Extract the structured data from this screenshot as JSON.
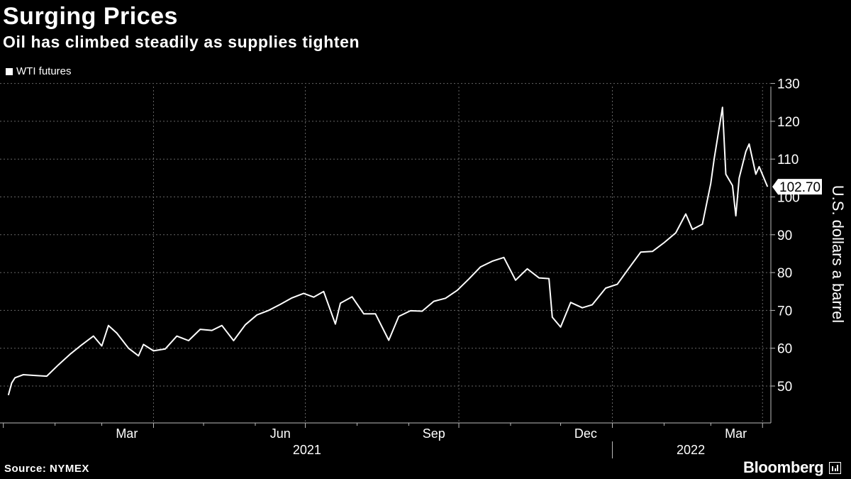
{
  "chart_data": {
    "type": "line",
    "title": "Surging Prices",
    "subtitle": "Oil has climbed steadily as supplies tighten",
    "ylabel": "U.S. dollars a barrel",
    "ylim": [
      41,
      131
    ],
    "yticks": [
      50,
      60,
      70,
      80,
      90,
      100,
      110,
      120,
      130
    ],
    "grid": true,
    "legend_position": "top-left",
    "x_month_labels": [
      "Mar",
      "Jun",
      "Sep",
      "Dec",
      "Mar"
    ],
    "x_year_labels": [
      "2021",
      "2022"
    ],
    "last_value_label": "102.70",
    "series": [
      {
        "name": "WTI futures",
        "color": "#ffffff",
        "x": [
          "2021-01-04",
          "2021-01-06",
          "2021-01-08",
          "2021-01-13",
          "2021-01-20",
          "2021-01-27",
          "2021-02-03",
          "2021-02-10",
          "2021-02-17",
          "2021-02-24",
          "2021-03-01",
          "2021-03-05",
          "2021-03-10",
          "2021-03-17",
          "2021-03-23",
          "2021-03-26",
          "2021-04-01",
          "2021-04-08",
          "2021-04-15",
          "2021-04-22",
          "2021-04-29",
          "2021-05-06",
          "2021-05-12",
          "2021-05-19",
          "2021-05-26",
          "2021-06-02",
          "2021-06-09",
          "2021-06-16",
          "2021-06-23",
          "2021-06-30",
          "2021-07-06",
          "2021-07-12",
          "2021-07-19",
          "2021-07-22",
          "2021-07-29",
          "2021-08-05",
          "2021-08-12",
          "2021-08-20",
          "2021-08-26",
          "2021-09-02",
          "2021-09-09",
          "2021-09-16",
          "2021-09-23",
          "2021-09-30",
          "2021-10-07",
          "2021-10-14",
          "2021-10-21",
          "2021-10-28",
          "2021-11-04",
          "2021-11-11",
          "2021-11-18",
          "2021-11-24",
          "2021-11-26",
          "2021-12-01",
          "2021-12-07",
          "2021-12-14",
          "2021-12-20",
          "2021-12-28",
          "2022-01-04",
          "2022-01-11",
          "2022-01-18",
          "2022-01-25",
          "2022-02-01",
          "2022-02-08",
          "2022-02-14",
          "2022-02-18",
          "2022-02-24",
          "2022-03-01",
          "2022-03-03",
          "2022-03-08",
          "2022-03-10",
          "2022-03-14",
          "2022-03-16",
          "2022-03-18",
          "2022-03-22",
          "2022-03-24",
          "2022-03-28",
          "2022-03-30",
          "2022-04-04"
        ],
        "values": [
          47.6,
          50.8,
          52.2,
          53.0,
          52.8,
          52.6,
          55.6,
          58.4,
          60.9,
          63.2,
          60.6,
          66.0,
          64.0,
          60.0,
          58.0,
          61.0,
          59.3,
          59.8,
          63.2,
          62.0,
          65.0,
          64.7,
          66.0,
          62.0,
          66.2,
          68.8,
          70.0,
          71.6,
          73.3,
          74.5,
          73.5,
          75.0,
          66.4,
          71.9,
          73.6,
          69.1,
          69.1,
          62.1,
          68.4,
          69.9,
          69.8,
          72.4,
          73.2,
          75.3,
          78.3,
          81.5,
          83.0,
          84.0,
          78.0,
          81.0,
          78.6,
          78.4,
          68.2,
          65.6,
          72.1,
          70.7,
          71.5,
          75.9,
          76.9,
          81.2,
          85.4,
          85.6,
          87.9,
          90.5,
          95.5,
          91.4,
          92.8,
          103.6,
          110.0,
          123.7,
          106.0,
          103.0,
          95.0,
          105.0,
          112.0,
          114.0,
          106.0,
          108.0,
          102.7
        ]
      }
    ]
  },
  "footer": {
    "source": "Source: NYMEX",
    "brand": "Bloomberg"
  }
}
